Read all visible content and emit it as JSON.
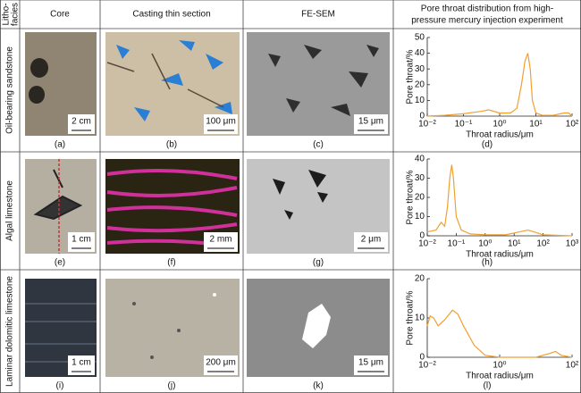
{
  "table": {
    "litho_header": [
      "Litho-",
      "facies"
    ],
    "headers": [
      "Core",
      "Casting thin section",
      "FE-SEM"
    ],
    "pore_header": [
      "Pore throat distribution from high-",
      "pressure mercury injection experiment"
    ],
    "rows": [
      {
        "label": "Oil-bearing sandstone",
        "panels": [
          "(a)",
          "(b)",
          "(c)",
          "(d)"
        ],
        "scale_bars": [
          "2 cm",
          "100 μm",
          "15 μm"
        ]
      },
      {
        "label": "Algal limestone",
        "panels": [
          "(e)",
          "(f)",
          "(g)",
          "(h)"
        ],
        "scale_bars": [
          "1 cm",
          "2 mm",
          "2 μm"
        ]
      },
      {
        "label": "Laminar dolomitic limestone",
        "panels": [
          "(i)",
          "(j)",
          "(k)",
          "(l)"
        ],
        "scale_bars": [
          "1 cm",
          "200 μm",
          "15 μm"
        ]
      }
    ]
  },
  "chart_data": [
    {
      "type": "line",
      "ylabel": "Pore throat/%",
      "xlabel": "Throat radius/μm",
      "xscale": "log",
      "color": "#f0a030",
      "x": [
        0.01,
        0.03,
        0.1,
        0.3,
        0.5,
        1,
        2,
        3,
        4,
        5,
        6,
        7,
        8,
        10,
        15,
        30,
        60,
        80,
        100
      ],
      "values": [
        0,
        0.5,
        1.5,
        3,
        4,
        2,
        2,
        5,
        20,
        35,
        40,
        30,
        10,
        2,
        0.5,
        0.5,
        2,
        2,
        0
      ],
      "xlim": [
        0.01,
        100
      ],
      "xticks": [
        {
          "value": 0.01,
          "label": "10⁻²"
        },
        {
          "value": 0.1,
          "label": "10⁻¹"
        },
        {
          "value": 1,
          "label": "10⁰"
        },
        {
          "value": 10,
          "label": "10¹"
        },
        {
          "value": 100,
          "label": "10²"
        }
      ],
      "ylim": [
        0,
        50
      ],
      "yticks": [
        0,
        10,
        20,
        30,
        40,
        50
      ]
    },
    {
      "type": "line",
      "ylabel": "Pore throat/%",
      "xlabel": "Throat radius/μm",
      "xscale": "log",
      "color": "#f0a030",
      "x": [
        0.01,
        0.02,
        0.03,
        0.04,
        0.05,
        0.06,
        0.07,
        0.08,
        0.1,
        0.15,
        0.3,
        1,
        5,
        15,
        30,
        50,
        100,
        1000
      ],
      "values": [
        2,
        3,
        7,
        5,
        15,
        30,
        37,
        30,
        10,
        3,
        1,
        0.5,
        0.5,
        2,
        3,
        2,
        0.5,
        0
      ],
      "xlim": [
        0.01,
        1000
      ],
      "xticks": [
        {
          "value": 0.01,
          "label": "10⁻²"
        },
        {
          "value": 0.1,
          "label": "10⁻¹"
        },
        {
          "value": 1,
          "label": "10⁰"
        },
        {
          "value": 10,
          "label": "10¹"
        },
        {
          "value": 100,
          "label": "10²"
        },
        {
          "value": 1000,
          "label": "10³"
        }
      ],
      "ylim": [
        0,
        40
      ],
      "yticks": [
        0,
        10,
        20,
        30,
        40
      ]
    },
    {
      "type": "line",
      "ylabel": "Pore throat/%",
      "xlabel": "Throat radius/μm",
      "xscale": "log",
      "color": "#f0a030",
      "x": [
        0.01,
        0.012,
        0.015,
        0.02,
        0.03,
        0.05,
        0.07,
        0.1,
        0.2,
        0.4,
        1,
        10,
        25,
        35,
        50,
        100
      ],
      "values": [
        8,
        10.5,
        10,
        8,
        9.5,
        12,
        11,
        8,
        3,
        0.5,
        0,
        0,
        1,
        1.5,
        0.5,
        0
      ],
      "xlim": [
        0.01,
        100
      ],
      "xticks": [
        {
          "value": 0.01,
          "label": "10⁻²"
        },
        {
          "value": 1,
          "label": "10⁰"
        },
        {
          "value": 100,
          "label": "10²"
        }
      ],
      "ylim": [
        0,
        20
      ],
      "yticks": [
        0,
        10,
        20
      ]
    }
  ]
}
